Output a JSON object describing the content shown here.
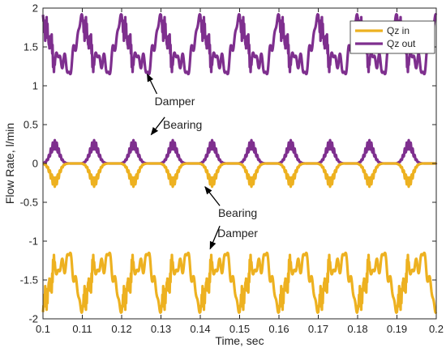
{
  "chart_data": {
    "type": "line",
    "title": "",
    "xlabel": "Time, sec",
    "ylabel": "Flow Rate, l/min",
    "xlim": [
      0.1,
      0.2
    ],
    "ylim": [
      -2,
      2
    ],
    "xticks": [
      "0.1",
      "0.11",
      "0.12",
      "0.13",
      "0.14",
      "0.15",
      "0.16",
      "0.17",
      "0.18",
      "0.19",
      "0.2"
    ],
    "yticks": [
      "-2",
      "-1.5",
      "-1",
      "-0.5",
      "0",
      "0.5",
      "1",
      "1.5",
      "2"
    ],
    "grid": false,
    "legend_position": "top-right",
    "period_s": 0.01,
    "colors": {
      "Qz in": "#EDB120",
      "Qz out": "#7E2F8E"
    },
    "series": [
      {
        "name": "Qz in",
        "color": "#EDB120",
        "traces": [
          {
            "component": "damper",
            "mean": -1.5,
            "min": -1.92,
            "max": -1.15
          },
          {
            "component": "bearing",
            "mean": -0.1,
            "min": -0.3,
            "max": 0.0
          }
        ]
      },
      {
        "name": "Qz out",
        "color": "#7E2F8E",
        "traces": [
          {
            "component": "damper",
            "mean": 1.5,
            "min": 1.15,
            "max": 1.92
          },
          {
            "component": "bearing",
            "mean": 0.1,
            "min": 0.0,
            "max": 0.3
          }
        ]
      }
    ],
    "annotations": [
      {
        "text": "Damper",
        "x": 0.1335,
        "y": 0.75,
        "arrow_to": [
          0.1265,
          1.15
        ]
      },
      {
        "text": "Bearing",
        "x": 0.1355,
        "y": 0.45,
        "arrow_to": [
          0.1275,
          0.37
        ]
      },
      {
        "text": "Bearing",
        "x": 0.1495,
        "y": -0.69,
        "arrow_to": [
          0.1412,
          -0.3
        ]
      },
      {
        "text": "Damper",
        "x": 0.1495,
        "y": -0.95,
        "arrow_to": [
          0.1425,
          -1.1
        ]
      }
    ]
  }
}
